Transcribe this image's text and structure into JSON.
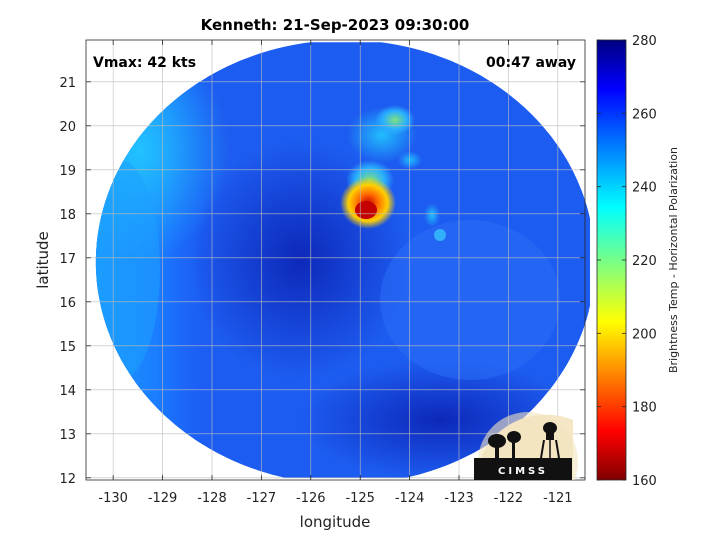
{
  "chart_data": {
    "type": "heatmap",
    "title": "Kenneth: 21-Sep-2023 09:30:00",
    "xlabel": "longitude",
    "ylabel": "latitude",
    "xlim": [
      -130.55,
      -120.45
    ],
    "ylim": [
      11.95,
      21.95
    ],
    "x_ticks": [
      -130,
      -129,
      -128,
      -127,
      -126,
      -125,
      -124,
      -123,
      -122,
      -121
    ],
    "y_ticks": [
      12,
      13,
      14,
      15,
      16,
      17,
      18,
      19,
      20,
      21
    ],
    "grid": true,
    "annotations": {
      "top_left": "Vmax: 42 kts",
      "top_right": "00:47 away"
    },
    "colorbar": {
      "label": "Brightness Temp - Horizontal Polarization",
      "range": [
        160,
        280
      ],
      "ticks": [
        160,
        180,
        200,
        220,
        240,
        260,
        280
      ],
      "colormap": "jet"
    },
    "swath": {
      "center": [
        -125.3,
        16.9
      ],
      "radius_deg": 5.05,
      "lat_clip": [
        12.0,
        21.9
      ]
    },
    "features": [
      {
        "lon": -124.65,
        "lat": 18.05,
        "tb": 178
      },
      {
        "lon": -124.55,
        "lat": 18.45,
        "tb": 205
      },
      {
        "lon": -124.5,
        "lat": 18.7,
        "tb": 225
      },
      {
        "lon": -124.3,
        "lat": 19.6,
        "tb": 238
      },
      {
        "lon": -123.85,
        "lat": 17.95,
        "tb": 240
      },
      {
        "lon": -125.6,
        "lat": 20.4,
        "tb": 245
      },
      {
        "lon": -129.6,
        "lat": 20.0,
        "tb": 236
      }
    ],
    "logo": "CIMSS"
  }
}
